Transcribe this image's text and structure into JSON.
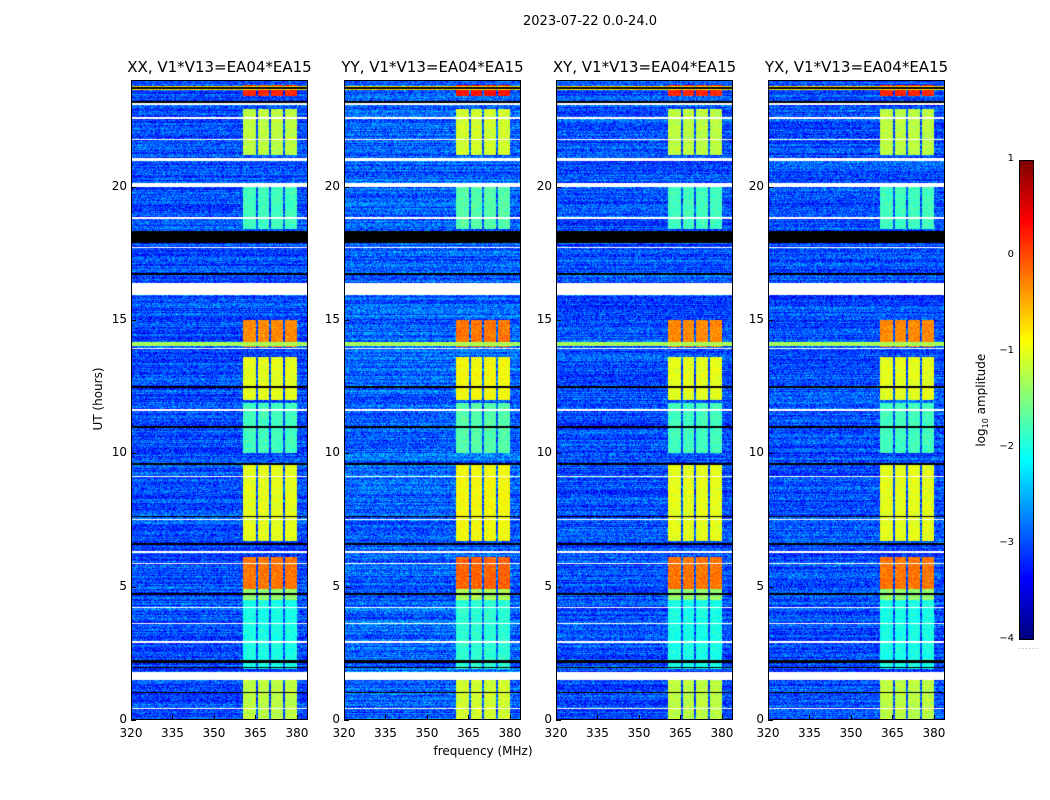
{
  "title": "2023-07-22 0.0-24.0",
  "chart_data": {
    "type": "heatmap",
    "title": "2023-07-22 0.0-24.0",
    "xlabel": "frequency (MHz)",
    "ylabel": "UT (hours)",
    "xlim": [
      320,
      384
    ],
    "ylim": [
      0,
      24
    ],
    "xticks": [
      320,
      335,
      350,
      365,
      380
    ],
    "yticks": [
      0,
      5,
      10,
      15,
      20
    ],
    "panels": [
      {
        "title": "XX, V1*V13=EA04*EA15",
        "offset": 0
      },
      {
        "title": "YY, V1*V13=EA04*EA15",
        "offset": 0.1
      },
      {
        "title": "XY, V1*V13=EA04*EA15",
        "offset": 0
      },
      {
        "title": "YX, V1*V13=EA04*EA15",
        "offset": 0
      }
    ],
    "background_log_amplitude": -3.0,
    "rfi_subbands_mhz": [
      [
        360.4,
        365.1
      ],
      [
        365.8,
        369.8
      ],
      [
        370.5,
        374.8
      ],
      [
        375.6,
        380.0
      ]
    ],
    "rfi_periods": [
      {
        "t": [
          23.4,
          23.8
        ],
        "v": 0.2
      },
      {
        "t": [
          21.2,
          22.9
        ],
        "v": -1.2
      },
      {
        "t": [
          18.4,
          20.0
        ],
        "v": -1.8
      },
      {
        "t": [
          14.0,
          15.0
        ],
        "v": -0.3
      },
      {
        "t": [
          12.0,
          13.6
        ],
        "v": -1.0
      },
      {
        "t": [
          10.0,
          11.9
        ],
        "v": -1.8
      },
      {
        "t": [
          6.7,
          9.6
        ],
        "v": -1.0
      },
      {
        "t": [
          4.9,
          6.1
        ],
        "v": -0.2
      },
      {
        "t": [
          4.5,
          4.9
        ],
        "v": -1.4
      },
      {
        "t": [
          1.9,
          4.5
        ],
        "v": -2.0
      },
      {
        "t": [
          0.0,
          1.5
        ],
        "v": -1.2
      }
    ],
    "broadband_lines": [
      {
        "t": 23.7,
        "v": -0.7
      },
      {
        "t": 14.1,
        "v": -1.3
      }
    ],
    "flagged_hours_white": [
      [
        23.05,
        23.12
      ],
      [
        22.55,
        22.62
      ],
      [
        21.75,
        21.8
      ],
      [
        20.95,
        21.08
      ],
      [
        20.0,
        20.15
      ],
      [
        18.8,
        18.85
      ],
      [
        17.7,
        17.75
      ],
      [
        15.95,
        16.4
      ],
      [
        13.9,
        13.95
      ],
      [
        11.6,
        11.65
      ],
      [
        9.1,
        9.15
      ],
      [
        7.5,
        7.55
      ],
      [
        6.25,
        6.35
      ],
      [
        5.85,
        5.9
      ],
      [
        4.2,
        4.25
      ],
      [
        3.6,
        3.65
      ],
      [
        2.9,
        2.95
      ],
      [
        1.5,
        1.8
      ],
      [
        0.4,
        0.45
      ]
    ],
    "dark_hours_black": [
      [
        23.65,
        23.72
      ],
      [
        23.15,
        23.2
      ],
      [
        17.9,
        18.35
      ],
      [
        16.7,
        16.75
      ],
      [
        12.45,
        12.52
      ],
      [
        10.95,
        11.02
      ],
      [
        9.55,
        9.62
      ],
      [
        7.6,
        7.66
      ],
      [
        6.55,
        6.62
      ],
      [
        4.7,
        4.77
      ],
      [
        2.15,
        2.25
      ],
      [
        1.95,
        2.0
      ],
      [
        1.0,
        1.06
      ]
    ],
    "colorbar": {
      "label": "log10 amplitude",
      "label_main": "log",
      "label_sub": "10",
      "label_rest": " amplitude",
      "range": [
        -4,
        1
      ],
      "ticks": [
        "1",
        "0",
        "−1",
        "−2",
        "−3",
        "−4"
      ],
      "colormap": "jet"
    }
  }
}
